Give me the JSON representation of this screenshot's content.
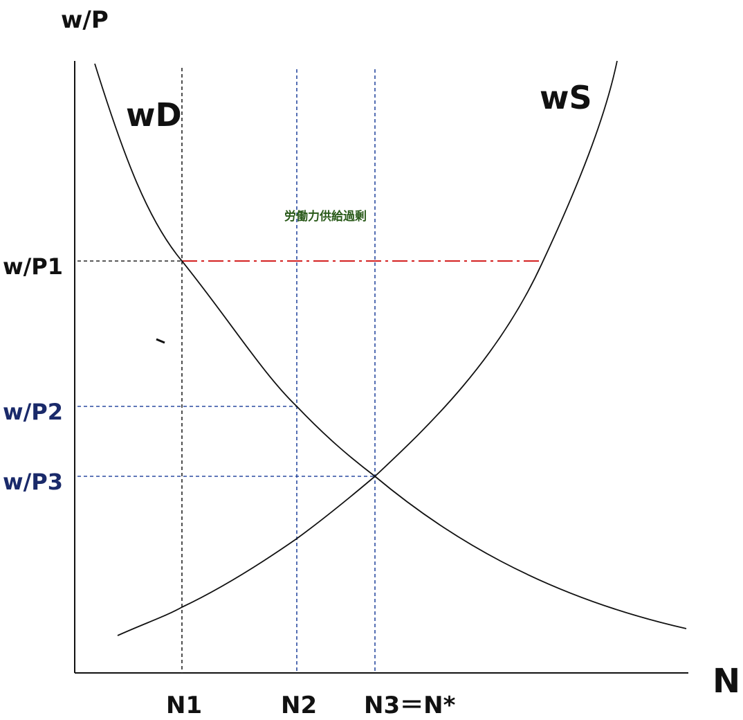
{
  "diagram": {
    "axes": {
      "y_label": "w/P",
      "x_label": "N"
    },
    "curves": {
      "demand_label": "wD",
      "supply_label": "wS"
    },
    "wage_levels": [
      {
        "label": "w/P1",
        "color": "#111111"
      },
      {
        "label": "w/P2",
        "color": "#1a2a6a"
      },
      {
        "label": "w/P3",
        "color": "#1a2a6a"
      }
    ],
    "employment_levels": [
      {
        "label": "N1"
      },
      {
        "label": "N2"
      },
      {
        "label": "N3＝N*"
      }
    ],
    "excess_supply_note": "労働力供給過剰",
    "colors": {
      "axis": "#111111",
      "curve": "#111111",
      "guide_black": "#222222",
      "guide_blue": "#2a4aa0",
      "excess_line": "#d42020",
      "note": "#2a5a1a"
    }
  }
}
